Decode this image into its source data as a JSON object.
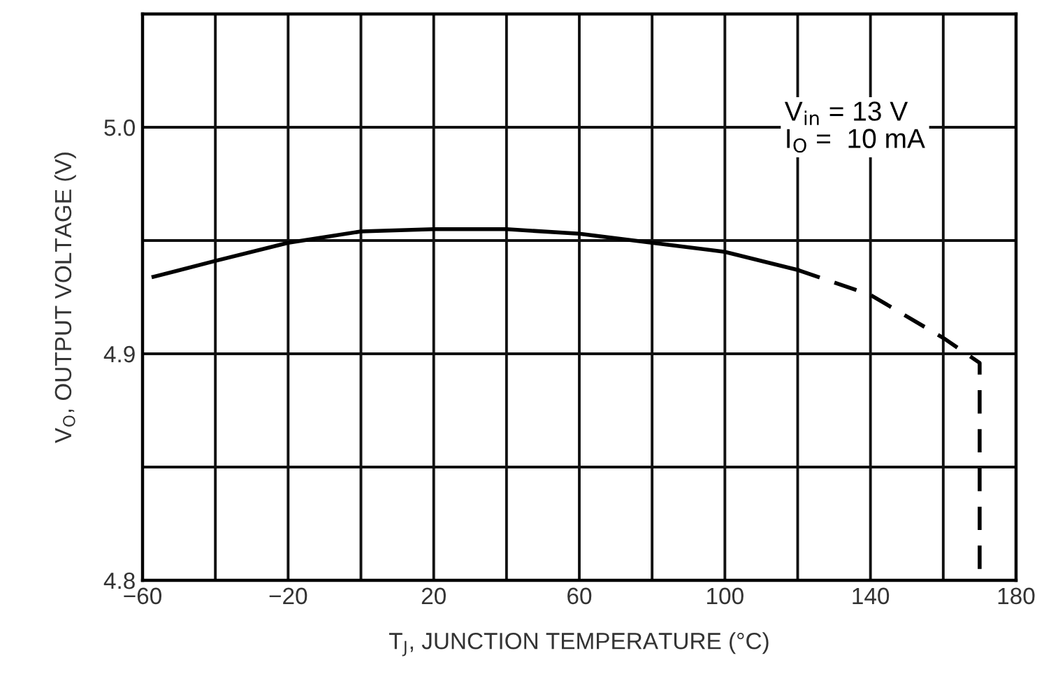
{
  "chart_data": {
    "type": "line",
    "xlabel": "T$_{J}$, JUNCTION TEMPERATURE (°C)",
    "ylabel": "V$_{O}$, OUTPUT VOLTAGE (V)",
    "annotations": [
      "V$_{in}$ = 13 V\nI$_{O}$ =  10 mA"
    ],
    "series": [
      {
        "color": "#000000",
        "line_style": "solid",
        "x": [
          -57,
          -40,
          -20,
          0,
          20,
          40,
          60,
          80,
          100,
          120
        ],
        "values": [
          4.934,
          4.941,
          4.949,
          4.954,
          4.955,
          4.955,
          4.953,
          4.949,
          4.945,
          4.937
        ]
      },
      {
        "color": "#000000",
        "line_style": "dashed",
        "x": [
          120,
          140,
          160,
          170,
          170
        ],
        "values": [
          4.937,
          4.926,
          4.907,
          4.896,
          4.8
        ]
      }
    ],
    "xlim": [
      -60,
      180
    ],
    "xticks": [
      {
        "value": -60,
        "label": "−60"
      },
      {
        "value": -40,
        "label": null
      },
      {
        "value": -20,
        "label": "−20"
      },
      {
        "value": 0,
        "label": null
      },
      20,
      {
        "value": 40,
        "label": null
      },
      60,
      {
        "value": 80,
        "label": null
      },
      100,
      {
        "value": 120,
        "label": null
      },
      140,
      {
        "value": 160,
        "label": null
      },
      180
    ],
    "ylim": [
      4.8,
      5.05
    ],
    "yticks": [
      4.8,
      {
        "value": 4.85,
        "label": null
      },
      4.9,
      {
        "value": 4.95,
        "label": null
      },
      {
        "value": 5.0,
        "label": "5.0"
      }
    ],
    "grid": true,
    "marker": "none"
  }
}
